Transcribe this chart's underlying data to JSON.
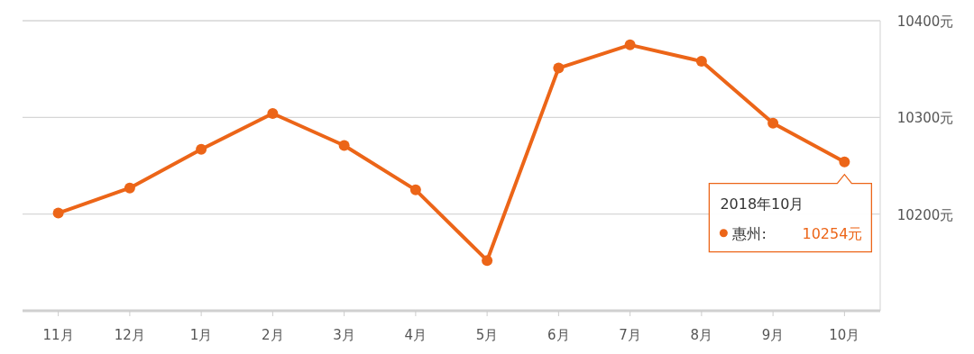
{
  "chart_data": {
    "type": "line",
    "categories": [
      "11月",
      "12月",
      "1月",
      "2月",
      "3月",
      "4月",
      "5月",
      "6月",
      "7月",
      "8月",
      "9月",
      "10月"
    ],
    "series": [
      {
        "color": "#ec6518",
        "values": [
          10201,
          10227,
          10267,
          10304,
          10271,
          10225,
          10152,
          10351,
          10375,
          10358,
          10294,
          10254
        ]
      }
    ],
    "ylim": [
      10100,
      10400
    ],
    "yticks": [
      {
        "value": 10200,
        "label": "10200元"
      },
      {
        "value": 10300,
        "label": "10300元"
      },
      {
        "value": 10400,
        "label": "10400元"
      }
    ],
    "annotations": [
      "2018年10月",
      "惠州:",
      "10254元"
    ],
    "grid": "y",
    "marker": "circle",
    "line_style": "solid"
  }
}
